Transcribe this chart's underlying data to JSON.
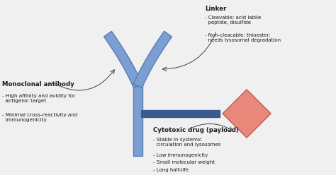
{
  "background_color": "#f0f0f0",
  "antibody_color": "#7b9fd4",
  "antibody_edge_color": "#5a7db0",
  "drug_color": "#e8877a",
  "drug_edge_color": "#c0604e",
  "linker_color": "#3a5a90",
  "text_color": "#1a1a1a",
  "title_monoclonal": "Monoclonal antibody",
  "bullets_monoclonal": [
    "- High affinity and avidity for\n  antigenic target",
    "- Minimal cross-reactivity and\n  immunogenicity"
  ],
  "title_linker": "Linker",
  "bullets_linker": [
    "- Cleavable: acid labile\n  peptide, disulfide",
    "- Non-cleacable: thioester;\n  needs lysosomal degradation"
  ],
  "title_drug": "Cytotoxic drug (payload)",
  "bullets_drug": [
    "- Stable in systemic\n  circulation and lysosomes",
    "- Low immunogenicity",
    "- Small molecular weight",
    "- Long half-life"
  ],
  "figsize": [
    4.74,
    2.48
  ],
  "dpi": 100
}
